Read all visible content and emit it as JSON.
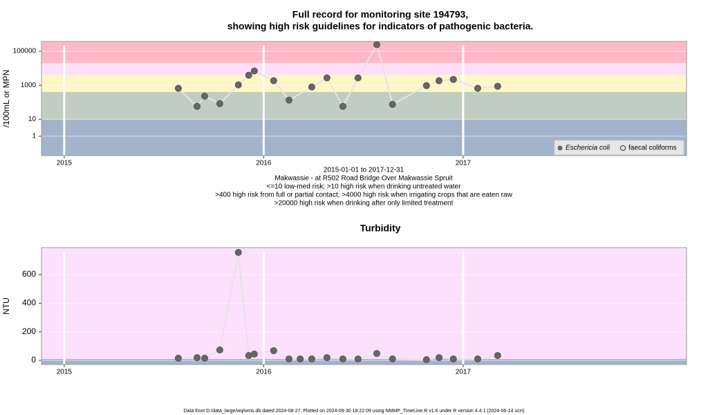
{
  "chart_data": [
    {
      "type": "line",
      "title": [
        "Full record for monitoring site 194793,",
        "showing high risk guidelines for indicators of pathogenic bacteria."
      ],
      "y_label": "/100mL or MPN",
      "log_y": true,
      "xlim": [
        2014.886,
        2018.12
      ],
      "xticks": [
        2015,
        2016,
        2017
      ],
      "ylim": [
        0.072,
        375000
      ],
      "yticks": [
        1,
        10,
        1000,
        100000
      ],
      "bands": {
        "breaks": [
          10,
          400,
          4000,
          20000
        ],
        "colors": [
          "#a3b3cb",
          "#c2cdc2",
          "#fdf7c6",
          "#fde0f7",
          "#ffb8c6"
        ]
      },
      "x": [
        2015.572,
        2015.666,
        2015.704,
        2015.78,
        2015.873,
        2015.925,
        2015.953,
        2016.05,
        2016.127,
        2016.241,
        2016.317,
        2016.397,
        2016.473,
        2016.567,
        2016.646,
        2016.816,
        2016.879,
        2016.951,
        2017.073,
        2017.173
      ],
      "series": [
        {
          "name": "Eschericia coli",
          "color": "#666666",
          "values": [
            660,
            57,
            230,
            83,
            1050,
            3900,
            6900,
            1850,
            133,
            790,
            2700,
            57,
            2700,
            245000,
            75,
            950,
            1850,
            2200,
            660,
            870
          ]
        }
      ],
      "legend": {
        "position": "bottom-right",
        "extra": [
          {
            "name": "faecal coliforms",
            "marker": "open"
          }
        ]
      },
      "notes": [
        "2015-01-01 to 2017-12-31",
        "Makwassie - at R502 Road Bridge Over Makwassie Spruit",
        "<=10 low-med risk; >10 high risk when drinking untreated water",
        ">400 high risk from full or partial contact; >4000 high risk when irrigating crops that are eaten raw",
        ">20000 high risk when drinking after only limited treatment"
      ]
    },
    {
      "type": "line",
      "title": [
        "Turbidity"
      ],
      "y_label": "NTU",
      "log_y": false,
      "xlim": [
        2014.886,
        2018.12
      ],
      "xticks": [
        2015,
        2016,
        2017
      ],
      "ylim": [
        -29,
        789
      ],
      "yticks": [
        0,
        200,
        400,
        600
      ],
      "bands": {
        "breaks": [
          10
        ],
        "colors": [
          "#a3b3cb",
          "#fde0fb"
        ]
      },
      "x": [
        2015.572,
        2015.666,
        2015.704,
        2015.78,
        2015.873,
        2015.925,
        2015.953,
        2016.05,
        2016.127,
        2016.183,
        2016.241,
        2016.317,
        2016.397,
        2016.473,
        2016.567,
        2016.646,
        2016.816,
        2016.879,
        2016.951,
        2017.073,
        2017.173
      ],
      "series": [
        {
          "name": "Turbidity",
          "color": "#666666",
          "values": [
            15,
            19,
            15,
            73,
            755,
            34,
            44,
            68,
            10,
            10,
            10,
            19,
            10,
            10,
            48,
            10,
            5,
            19,
            10,
            10,
            34
          ]
        }
      ]
    }
  ],
  "footer": "Data from D:/data_large/wq/wms.db dated 2024-08-27. Plotted on 2024-09-30 18:22:09 using NMMP_TimeLine.R v1.6 under R version 4.4.1 (2024-06-14 ucrt)"
}
